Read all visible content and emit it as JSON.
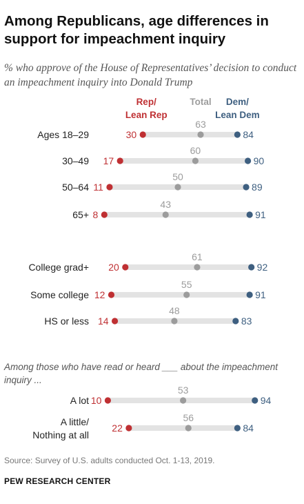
{
  "title": "Among Republicans, age differences in support for impeachment inquiry",
  "subtitle": "% who approve of the House of Representatives’ decision to conduct an impeachment inquiry into Donald Trump",
  "note": "Among those who have read or heard ___ about the impeachment inquiry ...",
  "source": "Source: Survey of U.S. adults conducted Oct. 1-13, 2019.",
  "org": "PEW RESEARCH CENTER",
  "colors": {
    "rep": "#bf3033",
    "total": "#9c9c9c",
    "dem": "#3e5f80",
    "bar": "#e3e3e3"
  },
  "chart_data": {
    "type": "scatter",
    "xlim": [
      0,
      100
    ],
    "legend_position": "top",
    "series": [
      {
        "key": "rep",
        "name": "Rep/ Lean Rep"
      },
      {
        "key": "total",
        "name": "Total"
      },
      {
        "key": "dem",
        "name": "Dem/ Lean Dem"
      }
    ],
    "rows": [
      {
        "label": "Ages 18–29",
        "rep": 30,
        "total": 63,
        "dem": 84
      },
      {
        "label": "30–49",
        "rep": 17,
        "total": 60,
        "dem": 90
      },
      {
        "label": "50–64",
        "rep": 11,
        "total": 50,
        "dem": 89
      },
      {
        "label": "65+",
        "rep": 8,
        "total": 43,
        "dem": 91
      },
      {
        "label": "College grad+",
        "rep": 20,
        "total": 61,
        "dem": 92
      },
      {
        "label": "Some college",
        "rep": 12,
        "total": 55,
        "dem": 91
      },
      {
        "label": "HS or less",
        "rep": 14,
        "total": 48,
        "dem": 83
      },
      {
        "label": "A lot",
        "rep": 10,
        "total": 53,
        "dem": 94
      },
      {
        "label": "A little/ Nothing at all",
        "rep": 22,
        "total": 56,
        "dem": 84
      }
    ]
  }
}
